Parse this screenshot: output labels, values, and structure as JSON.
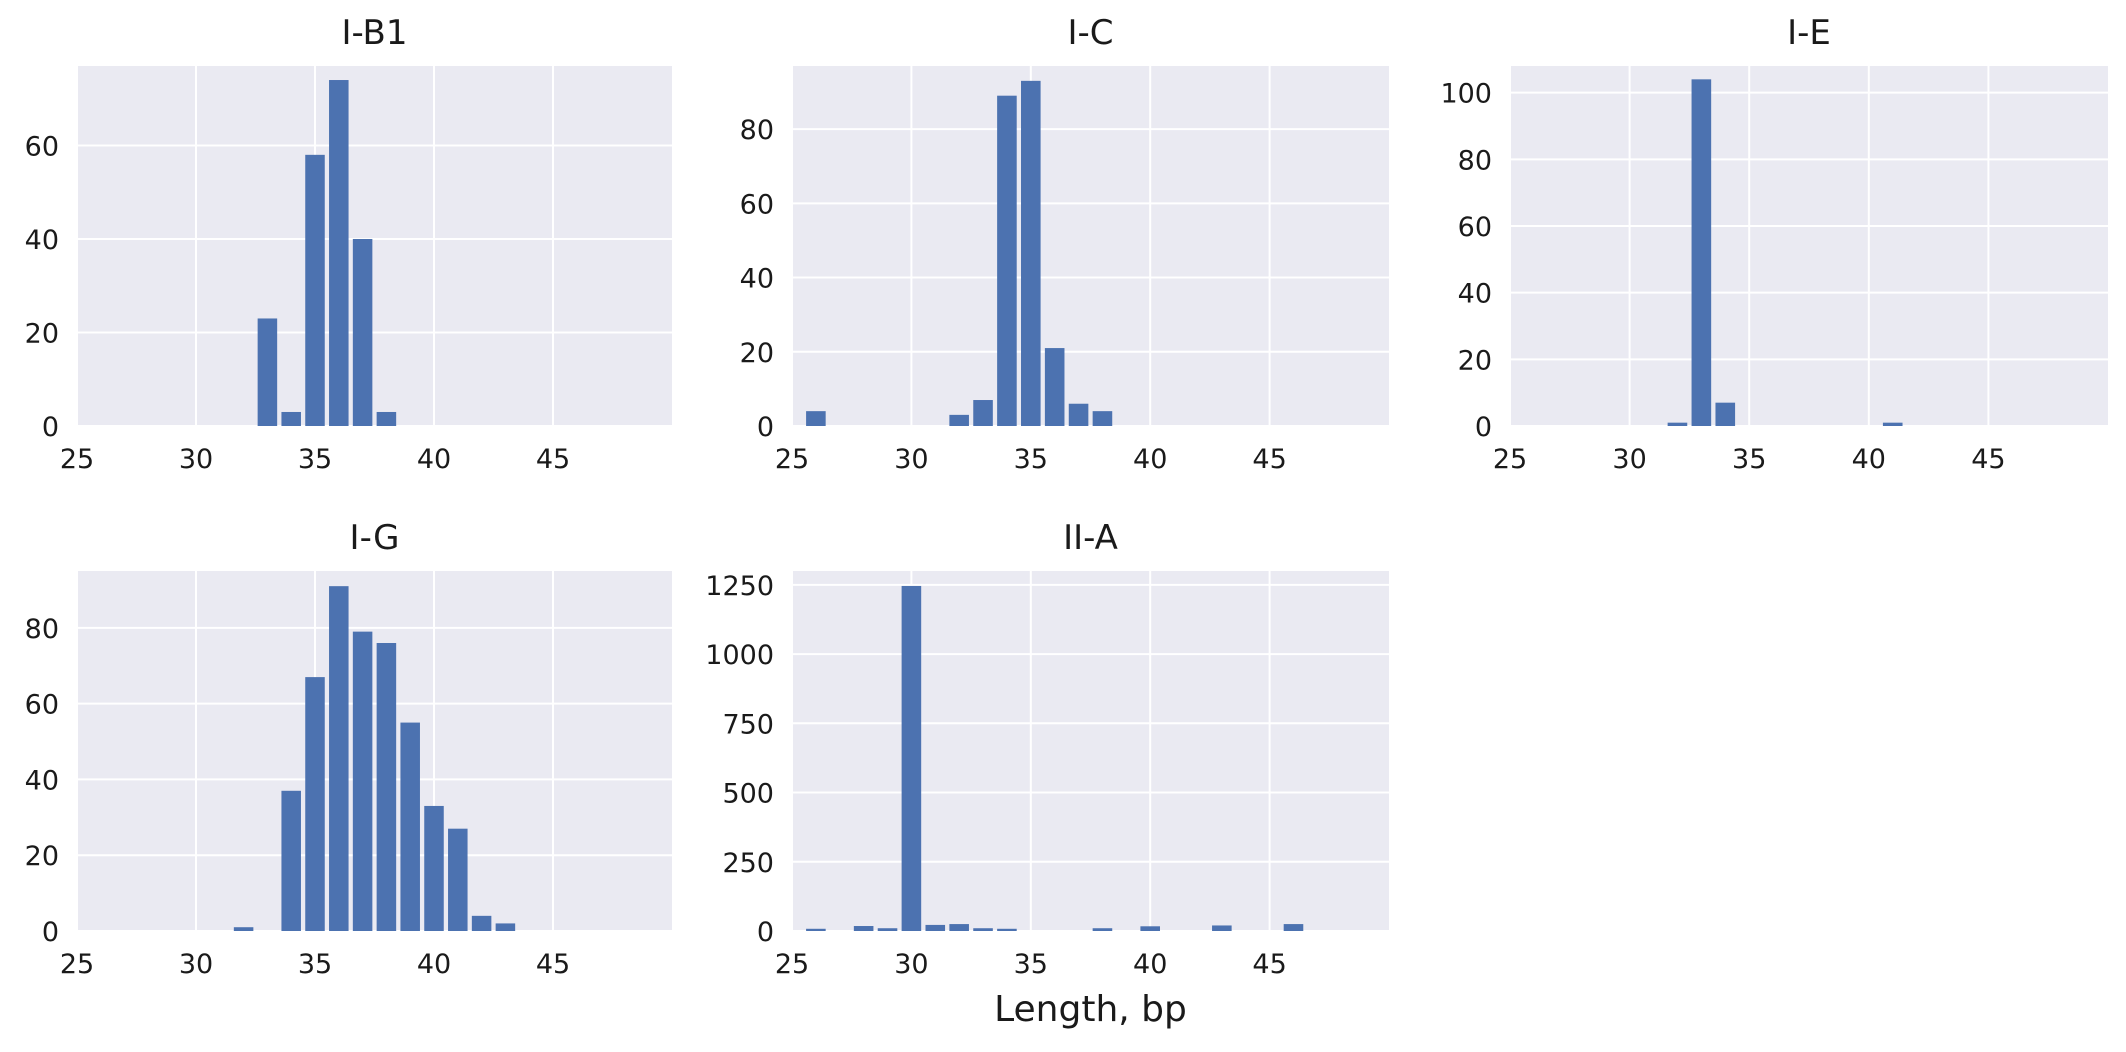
{
  "figure": {
    "xlabel": "Length, bp",
    "bar_color": "#4c72b0",
    "panel_bg": "#eaeaf2",
    "grid_color": "#ffffff"
  },
  "chart_data": [
    {
      "type": "bar",
      "title": "I-B1",
      "xlabel": "",
      "ylabel": "",
      "xlim": [
        25,
        50
      ],
      "ylim": [
        0,
        77
      ],
      "x_ticks": [
        25,
        30,
        35,
        40,
        45
      ],
      "y_ticks": [
        0,
        20,
        40,
        60
      ],
      "grid": true,
      "x": [
        33,
        34,
        35,
        36,
        37,
        38
      ],
      "values": [
        23,
        3,
        58,
        74,
        40,
        3
      ]
    },
    {
      "type": "bar",
      "title": "I-C",
      "xlabel": "",
      "ylabel": "",
      "xlim": [
        25,
        50
      ],
      "ylim": [
        0,
        97
      ],
      "x_ticks": [
        25,
        30,
        35,
        40,
        45
      ],
      "y_ticks": [
        0,
        20,
        40,
        60,
        80
      ],
      "grid": true,
      "x": [
        26,
        32,
        33,
        34,
        35,
        36,
        37,
        38
      ],
      "values": [
        4,
        3,
        7,
        89,
        93,
        21,
        6,
        4
      ]
    },
    {
      "type": "bar",
      "title": "I-E",
      "xlabel": "",
      "ylabel": "",
      "xlim": [
        25,
        50
      ],
      "ylim": [
        0,
        108
      ],
      "x_ticks": [
        25,
        30,
        35,
        40,
        45
      ],
      "y_ticks": [
        0,
        20,
        40,
        60,
        80,
        100
      ],
      "grid": true,
      "x": [
        32,
        33,
        34,
        41
      ],
      "values": [
        1,
        104,
        7,
        1
      ]
    },
    {
      "type": "bar",
      "title": "I-G",
      "xlabel": "",
      "ylabel": "",
      "xlim": [
        25,
        50
      ],
      "ylim": [
        0,
        95
      ],
      "x_ticks": [
        25,
        30,
        35,
        40,
        45
      ],
      "y_ticks": [
        0,
        20,
        40,
        60,
        80
      ],
      "grid": true,
      "x": [
        32,
        34,
        35,
        36,
        37,
        38,
        39,
        40,
        41,
        42,
        43
      ],
      "values": [
        1,
        37,
        67,
        91,
        79,
        76,
        55,
        33,
        27,
        4,
        2
      ]
    },
    {
      "type": "bar",
      "title": "II-A",
      "xlabel": "Length, bp",
      "ylabel": "",
      "xlim": [
        25,
        50
      ],
      "ylim": [
        0,
        1300
      ],
      "x_ticks": [
        25,
        30,
        35,
        40,
        45
      ],
      "y_ticks": [
        0,
        250,
        500,
        750,
        1000,
        1250
      ],
      "grid": true,
      "x": [
        26,
        28,
        29,
        30,
        31,
        32,
        33,
        34,
        38,
        40,
        43,
        46
      ],
      "values": [
        8,
        18,
        10,
        1246,
        22,
        25,
        10,
        8,
        10,
        17,
        20,
        25
      ]
    }
  ]
}
